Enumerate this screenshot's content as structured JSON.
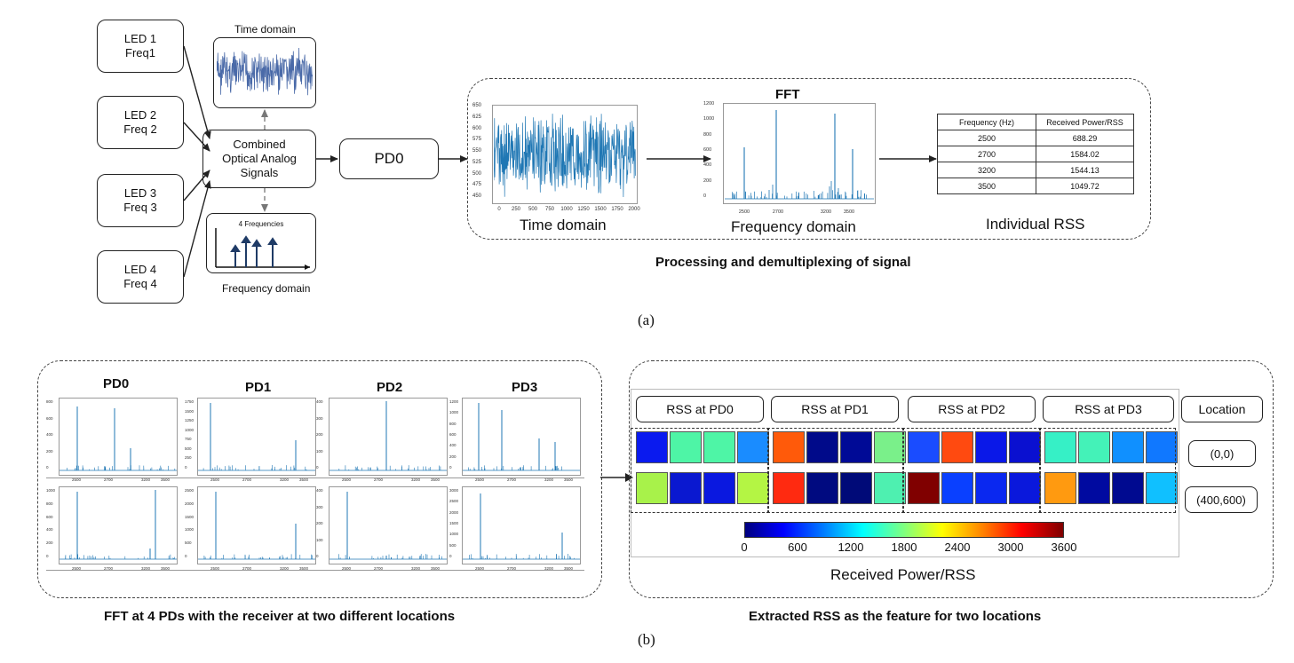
{
  "part_a": {
    "leds": [
      {
        "line1": "LED 1",
        "line2": "Freq1"
      },
      {
        "line1": "LED 2",
        "line2": "Freq 2"
      },
      {
        "line1": "LED 3",
        "line2": "Freq 3"
      },
      {
        "line1": "LED 4",
        "line2": "Freq 4"
      }
    ],
    "time_domain_label": "Time domain",
    "frequency_domain_label": "Frequency domain",
    "four_freq_label": "4 Frequencies",
    "combined": {
      "line1": "Combined",
      "line2": "Optical Analog",
      "line3": "Signals"
    },
    "pd0_label": "PD0",
    "fft_title": "FFT",
    "proc_time_domain": "Time domain",
    "proc_freq_domain": "Frequency domain",
    "individual_rss": "Individual RSS",
    "processing_title": "Processing and demultiplexing of signal",
    "caption": "(a)",
    "time_axis": {
      "y_ticks": [
        "650",
        "625",
        "600",
        "575",
        "550",
        "525",
        "500",
        "475",
        "450"
      ],
      "x_ticks": [
        "0",
        "250",
        "500",
        "750",
        "1000",
        "1250",
        "1500",
        "1750",
        "2000"
      ]
    },
    "fft_axis": {
      "y_ticks": [
        "1200",
        "1000",
        "800",
        "600",
        "400",
        "200",
        "0"
      ],
      "x_ticks": [
        "2500",
        "2700",
        "3200",
        "3500"
      ]
    },
    "table": {
      "headers": [
        "Frequency (Hz)",
        "Received Power/RSS"
      ],
      "rows": [
        [
          "2500",
          "688.29"
        ],
        [
          "2700",
          "1584.02"
        ],
        [
          "3200",
          "1544.13"
        ],
        [
          "3500",
          "1049.72"
        ]
      ]
    }
  },
  "part_b": {
    "pd_titles": [
      "PD0",
      "PD1",
      "PD2",
      "PD3"
    ],
    "left_caption": "FFT at 4 PDs with the receiver at two different locations",
    "right_caption": "Extracted RSS as the feature for two locations",
    "caption": "(b)",
    "rss_headers": [
      "RSS at PD0",
      "RSS at PD1",
      "RSS at PD2",
      "RSS at PD3"
    ],
    "location_header": "Location",
    "locations": [
      "(0,0)",
      "(400,600)"
    ],
    "colorbar_ticks": [
      "0",
      "600",
      "1200",
      "1800",
      "2400",
      "3000",
      "3600"
    ],
    "colorbar_label": "Received Power/RSS",
    "grid_colors": [
      [
        "#0a1aef",
        "#4ef5a6",
        "#4ef5a6",
        "#1a8cff",
        "#ff5a0a",
        "#000a8a",
        "#000a96",
        "#7af08a",
        "#1a4cff",
        "#ff4a10",
        "#0a18e8",
        "#0a10d0",
        "#36f0c6",
        "#44f2b8",
        "#1090ff",
        "#1078ff"
      ],
      [
        "#a8f24a",
        "#0a18d0",
        "#0a18e0",
        "#b4f544",
        "#ff2a10",
        "#000a80",
        "#000a78",
        "#4ef0b0",
        "#800000",
        "#0a40ff",
        "#0a28f0",
        "#0a18dc",
        "#ff9a10",
        "#000aa0",
        "#000a90",
        "#10c0ff"
      ]
    ],
    "small_ticks": {
      "y_sets": [
        [
          "800",
          "600",
          "400",
          "200",
          "0"
        ],
        [
          "1750",
          "1500",
          "1250",
          "1000",
          "750",
          "500",
          "250",
          "0"
        ],
        [
          "400",
          "300",
          "200",
          "100",
          "0"
        ],
        [
          "1200",
          "1000",
          "800",
          "600",
          "400",
          "200",
          "0"
        ],
        [
          "1000",
          "800",
          "600",
          "400",
          "200",
          "0"
        ],
        [
          "2500",
          "2000",
          "1500",
          "1000",
          "500",
          "0"
        ],
        [
          "400",
          "300",
          "200",
          "100",
          "0"
        ],
        [
          "3000",
          "2500",
          "2000",
          "1500",
          "1000",
          "500",
          "0"
        ]
      ],
      "x_ticks": [
        "2500",
        "2700",
        "3200",
        "3500"
      ]
    }
  }
}
